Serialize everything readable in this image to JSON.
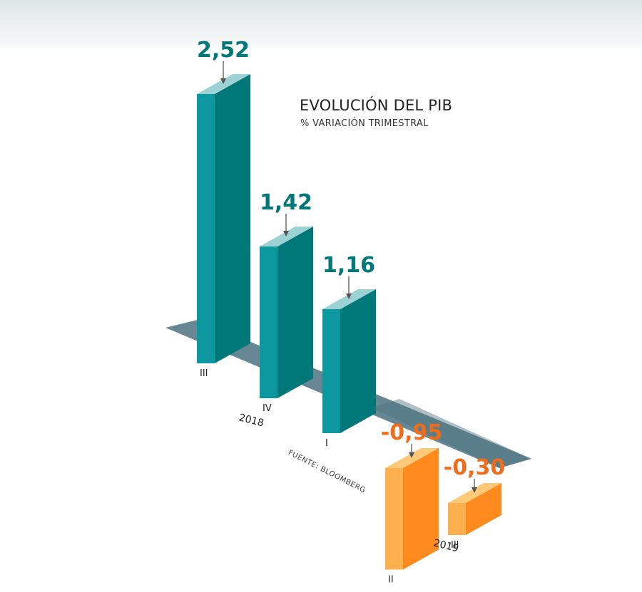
{
  "title": "EVOLUCIÓN DEL PIB",
  "subtitle": "% VARIACIÓN TRIMESTRAL",
  "source": "FUENTE: BLOOMBERG",
  "colors": {
    "positive_front": "#0d979e",
    "positive_side": "#007779",
    "positive_top": "#9cd2d4",
    "negative_front": "#ffb04e",
    "negative_side": "#ff8a1e",
    "negative_top": "#ffc978",
    "positive_label": "#00787a",
    "negative_label": "#ef6c1b",
    "axis_band": "#4b7280"
  },
  "chart_data": {
    "type": "bar",
    "title": "EVOLUCIÓN DEL PIB",
    "subtitle": "% VARIACIÓN TRIMESTRAL",
    "categories": [
      "III",
      "IV",
      "I",
      "II",
      "III"
    ],
    "years": [
      {
        "label": "2018",
        "quarters": [
          "III",
          "IV"
        ]
      },
      {
        "label": "2019",
        "quarters": [
          "I",
          "II",
          "III"
        ]
      }
    ],
    "year_labels": [
      "2018",
      "2019"
    ],
    "values": [
      2.52,
      1.42,
      1.16,
      -0.95,
      -0.3
    ],
    "value_labels": [
      "2,52",
      "1,42",
      "1,16",
      "-0,95",
      "-0,30"
    ],
    "style": "3d-isometric"
  }
}
